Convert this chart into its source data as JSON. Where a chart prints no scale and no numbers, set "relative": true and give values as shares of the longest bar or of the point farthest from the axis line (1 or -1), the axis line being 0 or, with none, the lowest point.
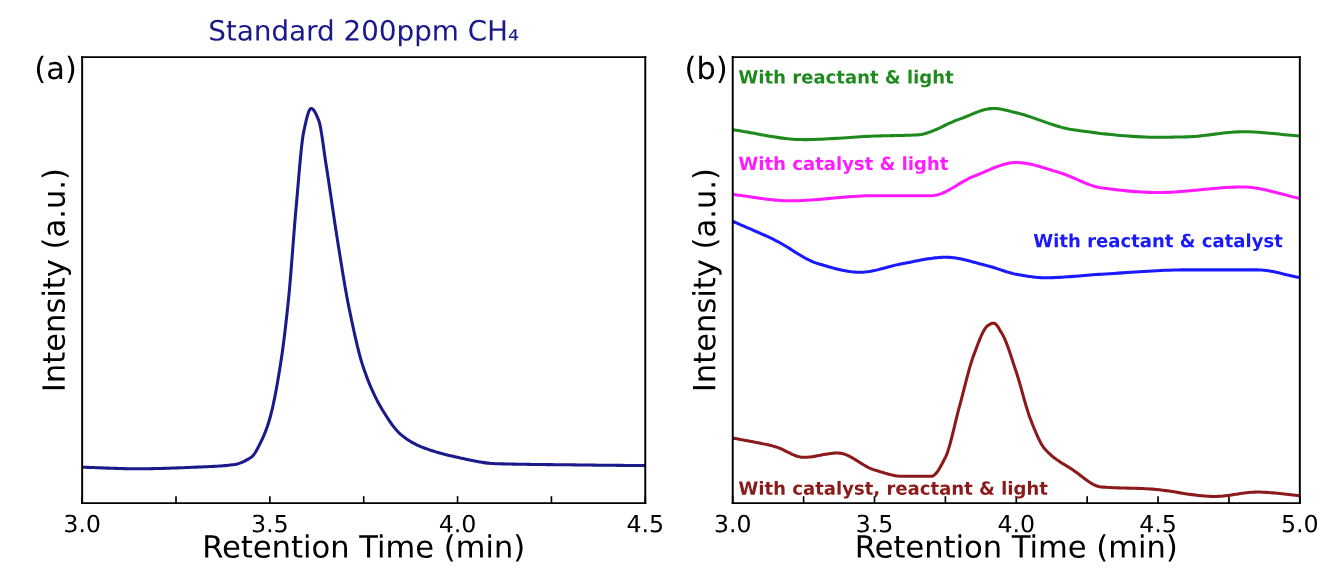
{
  "chart_data": [
    {
      "type": "line",
      "title": "Standard 200ppm CH₄",
      "xlabel": "Retention Time (min)",
      "ylabel": "Intensity (a.u.)",
      "relative": true,
      "tick_labels": "x",
      "grid": false,
      "legend": false,
      "annotations": [
        "(a)"
      ],
      "xlim": [
        3.0,
        4.5
      ],
      "xticks": [
        {
          "value": 3.0,
          "label": "3.0"
        },
        {
          "value": 3.25,
          "label": null
        },
        {
          "value": 3.5,
          "label": "3.5"
        },
        {
          "value": 3.75,
          "label": null
        },
        {
          "value": 4.0,
          "label": "4.0"
        },
        {
          "value": 4.25,
          "label": null
        },
        {
          "value": 4.5,
          "label": "4.5"
        }
      ],
      "series": [
        {
          "color": "#1a1a8a",
          "x": [
            3.0,
            3.15,
            3.3,
            3.4,
            3.45,
            3.48,
            3.5,
            3.53,
            3.55,
            3.57,
            3.59,
            3.61,
            3.63,
            3.65,
            3.68,
            3.71,
            3.75,
            3.8,
            3.85,
            3.9,
            4.0,
            4.1,
            4.3,
            4.5
          ],
          "values": [
            0.091,
            0.087,
            0.091,
            0.097,
            0.116,
            0.163,
            0.215,
            0.362,
            0.52,
            0.75,
            0.94,
            1.0,
            0.97,
            0.856,
            0.667,
            0.499,
            0.341,
            0.236,
            0.173,
            0.144,
            0.116,
            0.1,
            0.097,
            0.095
          ]
        }
      ]
    },
    {
      "type": "line",
      "xlabel": "Retention Time (min)",
      "ylabel": "Intensity (a.u.)",
      "relative": true,
      "tick_labels": "x",
      "grid": false,
      "legend": false,
      "annotations": [
        "(b)"
      ],
      "xlim": [
        3.0,
        5.0
      ],
      "xticks": [
        {
          "value": 3.0,
          "label": "3.0"
        },
        {
          "value": 3.25,
          "label": null
        },
        {
          "value": 3.5,
          "label": "3.5"
        },
        {
          "value": 3.75,
          "label": null
        },
        {
          "value": 4.0,
          "label": "4.0"
        },
        {
          "value": 4.25,
          "label": null
        },
        {
          "value": 4.5,
          "label": "4.5"
        },
        {
          "value": 4.75,
          "label": null
        },
        {
          "value": 5.0,
          "label": "5.0"
        }
      ],
      "series": [
        {
          "name": "With reactant & light",
          "color": "#1e8a1e",
          "x": [
            3.0,
            3.25,
            3.5,
            3.65,
            3.8,
            3.92,
            4.0,
            4.2,
            4.5,
            4.6,
            4.8,
            5.0
          ],
          "values": [
            0.946,
            0.921,
            0.93,
            0.933,
            0.973,
            1.0,
            0.989,
            0.946,
            0.927,
            0.928,
            0.941,
            0.93
          ]
        },
        {
          "name": "With catalyst & light",
          "color": "#ff1aff",
          "x": [
            3.0,
            3.2,
            3.5,
            3.7,
            3.85,
            4.0,
            4.15,
            4.3,
            4.5,
            4.8,
            5.0
          ],
          "values": [
            0.782,
            0.766,
            0.779,
            0.779,
            0.828,
            0.863,
            0.838,
            0.799,
            0.787,
            0.801,
            0.772
          ]
        },
        {
          "name": "With reactant & catalyst",
          "color": "#1a1aff",
          "x": [
            3.0,
            3.15,
            3.3,
            3.45,
            3.6,
            3.75,
            3.9,
            4.0,
            4.1,
            4.3,
            4.6,
            4.85,
            5.0
          ],
          "values": [
            0.714,
            0.666,
            0.607,
            0.585,
            0.607,
            0.623,
            0.601,
            0.58,
            0.571,
            0.58,
            0.591,
            0.591,
            0.571
          ]
        },
        {
          "name": "With catalyst, reactant & light",
          "color": "#8b1a1a",
          "x": [
            3.0,
            3.15,
            3.25,
            3.37,
            3.5,
            3.6,
            3.7,
            3.75,
            3.8,
            3.85,
            3.9,
            3.92,
            3.95,
            4.0,
            4.05,
            4.1,
            4.2,
            4.3,
            4.47,
            4.7,
            4.85,
            5.0
          ],
          "values": [
            0.165,
            0.143,
            0.116,
            0.127,
            0.084,
            0.068,
            0.068,
            0.116,
            0.246,
            0.375,
            0.45,
            0.456,
            0.429,
            0.332,
            0.213,
            0.138,
            0.084,
            0.041,
            0.036,
            0.017,
            0.028,
            0.019
          ]
        }
      ]
    }
  ]
}
